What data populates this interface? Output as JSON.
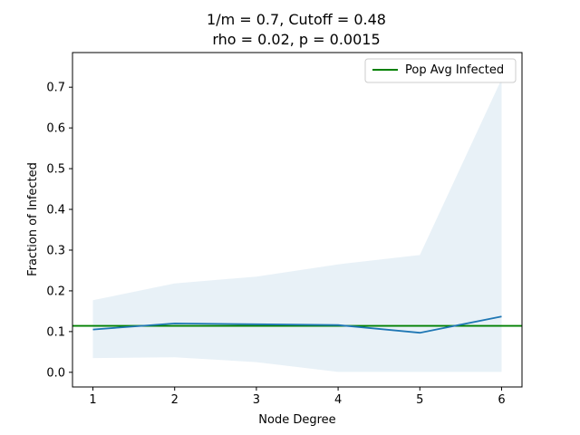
{
  "chart_data": {
    "type": "line",
    "title_line1": "1/m = 0.7, Cutoff = 0.48",
    "title_line2": "rho = 0.02, p = 0.0015",
    "xlabel": "Node Degree",
    "ylabel": "Fraction of Infected",
    "x": [
      1,
      2,
      3,
      4,
      5,
      6
    ],
    "xticks": [
      "1",
      "2",
      "3",
      "4",
      "5",
      "6"
    ],
    "yticks": [
      "0.0",
      "0.1",
      "0.2",
      "0.3",
      "0.4",
      "0.5",
      "0.6",
      "0.7"
    ],
    "xlim": [
      0.75,
      6.25
    ],
    "ylim": [
      -0.036,
      0.785
    ],
    "series": [
      {
        "values": [
          0.105,
          0.12,
          0.118,
          0.116,
          0.097,
          0.137
        ],
        "color": "#1f77b4"
      }
    ],
    "band": {
      "lower": [
        0.035,
        0.037,
        0.025,
        0.001,
        0.001,
        0.001
      ],
      "upper": [
        0.177,
        0.218,
        0.235,
        0.265,
        0.288,
        0.72
      ],
      "color": "#1f77b4"
    },
    "hline": {
      "name": "Pop Avg Infected",
      "value": 0.114,
      "color": "#008000"
    },
    "legend_position": "top-right"
  }
}
